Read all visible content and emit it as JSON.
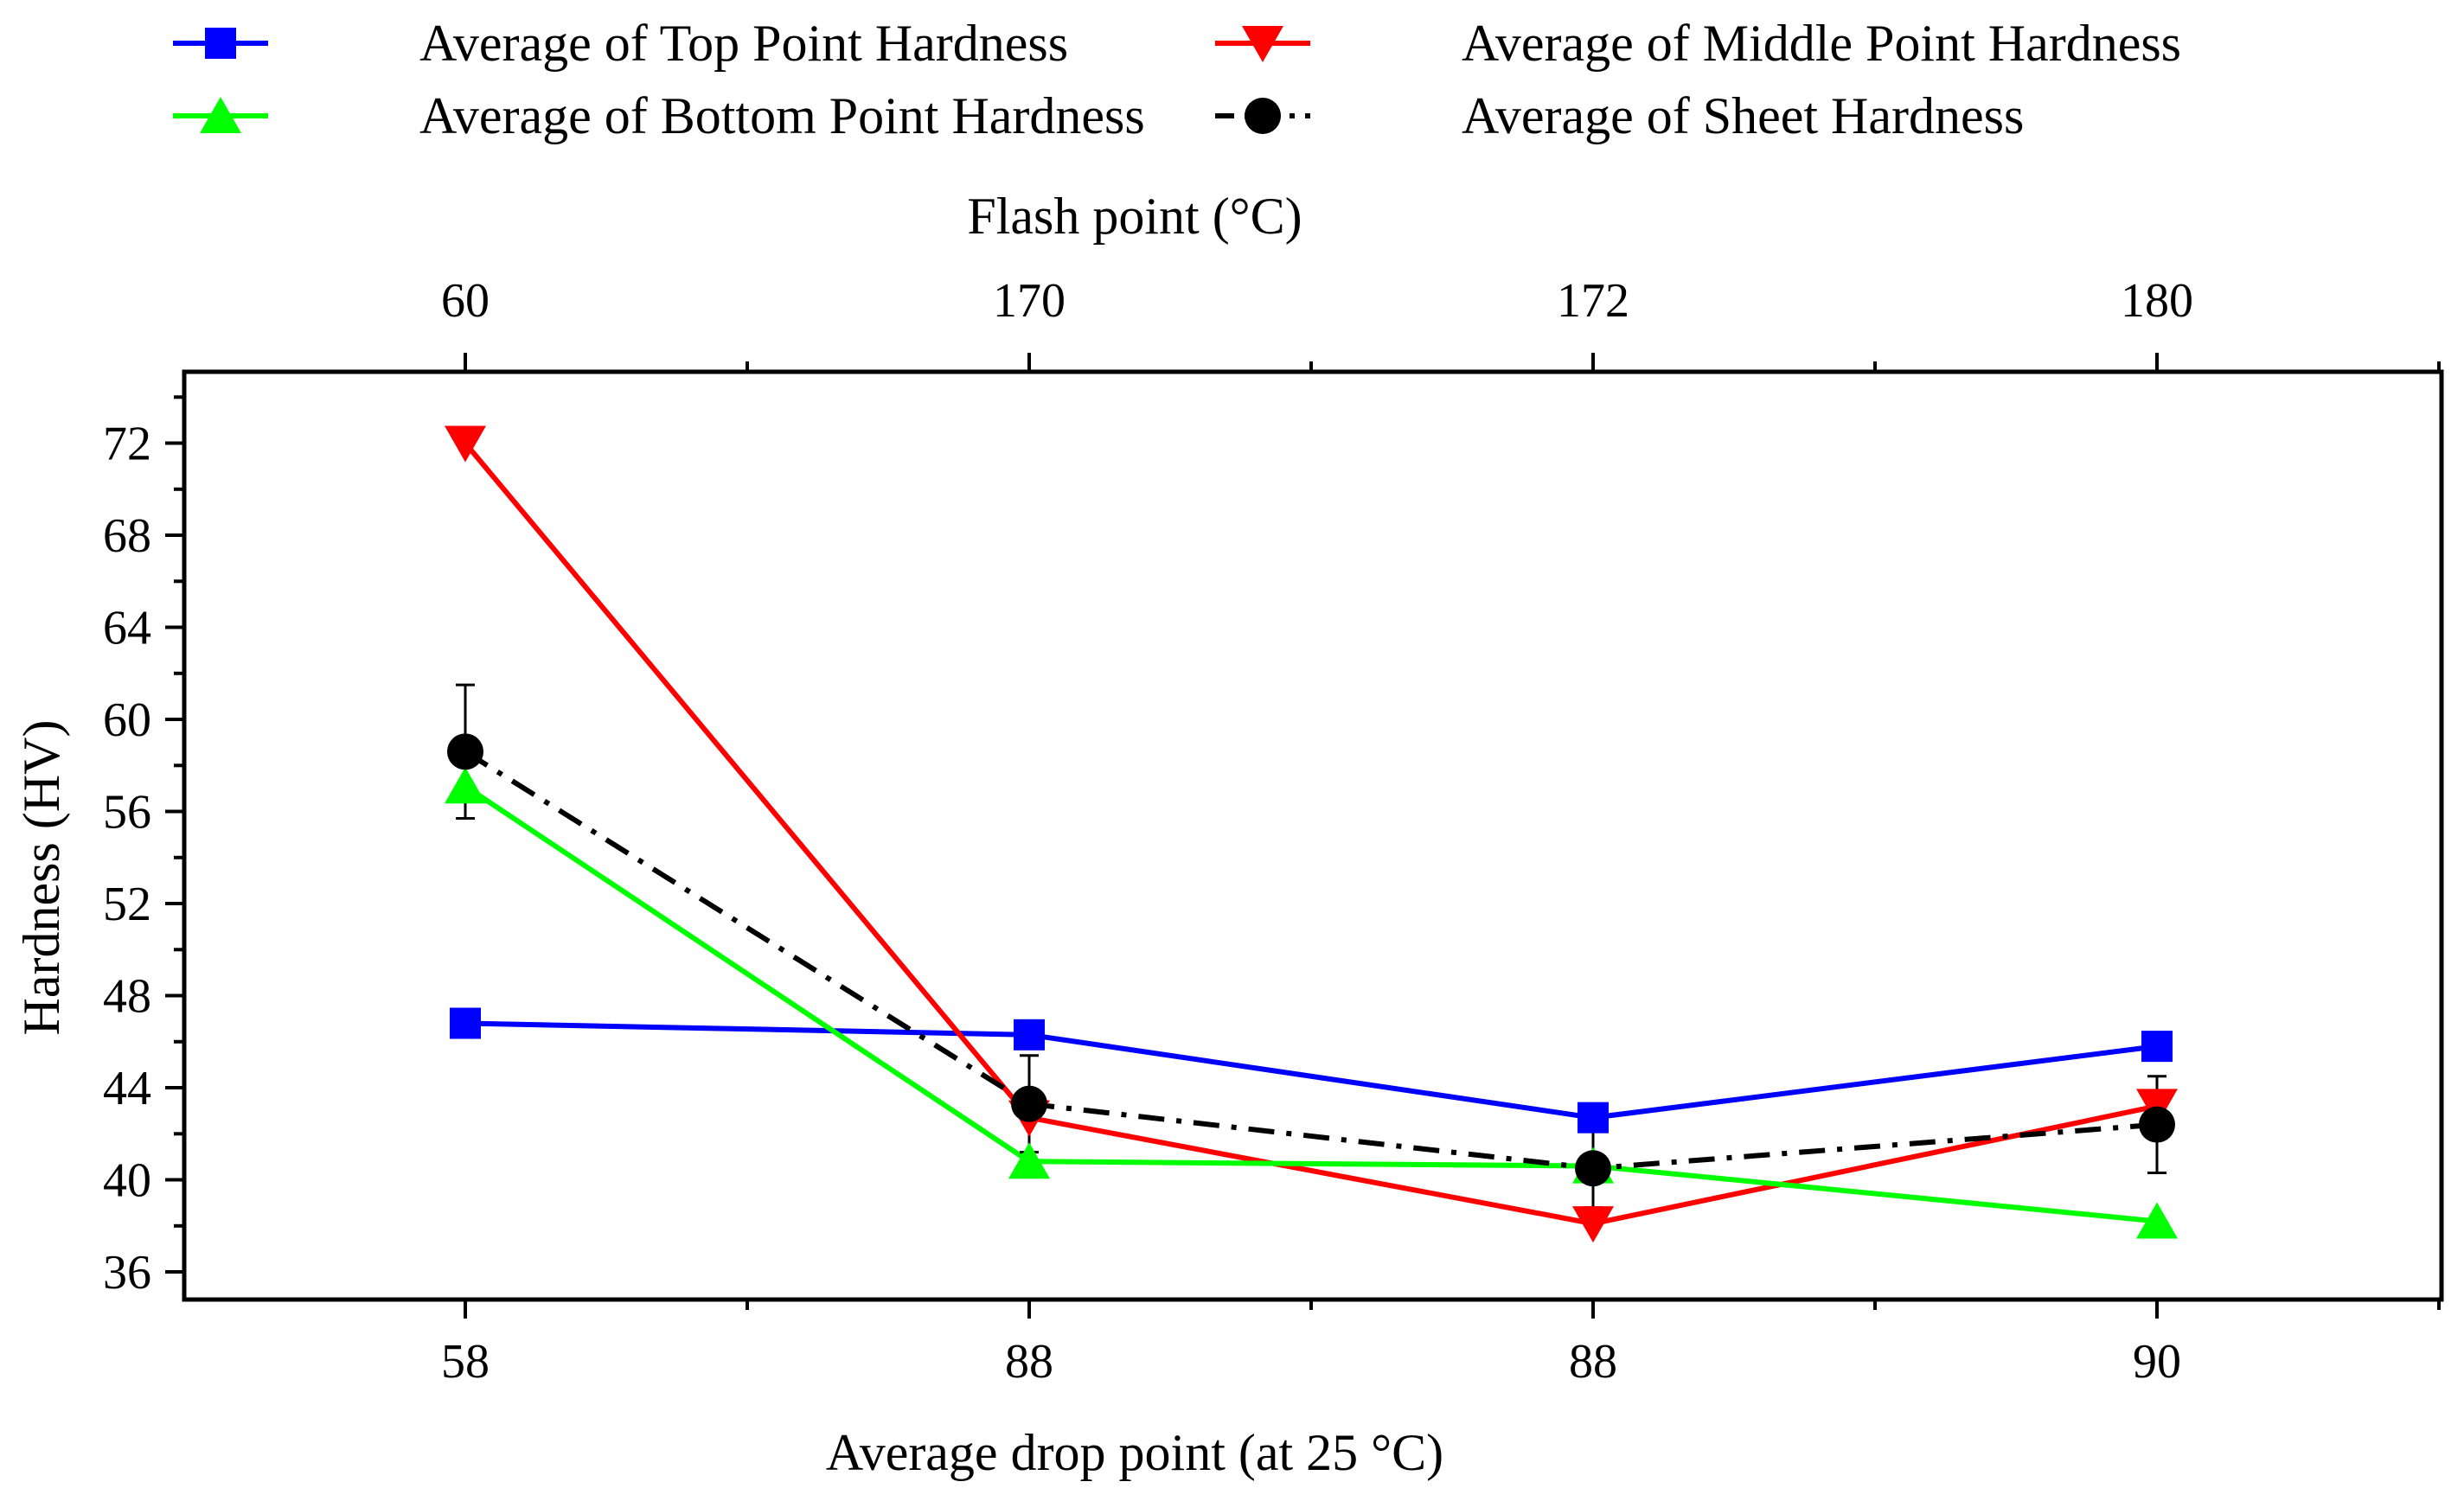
{
  "chart_data": {
    "type": "line",
    "categories": [
      "58",
      "88",
      "88",
      "90"
    ],
    "top_categories": [
      "60",
      "170",
      "172",
      "180"
    ],
    "xlabel": "Average drop point (at 25 °C)",
    "top_xlabel": "Flash point (°C)",
    "ylabel": "Hardness (HV)",
    "ylim": [
      34.8,
      75.1
    ],
    "yticks": [
      36,
      40,
      44,
      48,
      52,
      56,
      60,
      64,
      68,
      72
    ],
    "grid": false,
    "legend_position": "top",
    "series": [
      {
        "name": "Average of Top Point Hardness",
        "color": "#0000ff",
        "marker": "square",
        "line_style": "solid",
        "values": [
          46.8,
          46.3,
          42.7,
          45.8
        ]
      },
      {
        "name": "Average of Middle Point Hardness",
        "color": "#ff0000",
        "marker": "triangle-down",
        "line_style": "solid",
        "values": [
          72.0,
          42.7,
          38.1,
          43.2
        ]
      },
      {
        "name": "Average of Bottom Point Hardness",
        "color": "#00ff00",
        "marker": "triangle-up",
        "line_style": "solid",
        "values": [
          57.1,
          40.8,
          40.6,
          38.2
        ]
      },
      {
        "name": "Average of Sheet Hardness",
        "color": "#000000",
        "marker": "circle",
        "line_style": "dash-dot",
        "values": [
          58.6,
          43.3,
          40.5,
          42.4
        ],
        "error": [
          2.9,
          2.1,
          1.7,
          2.1
        ]
      }
    ]
  }
}
